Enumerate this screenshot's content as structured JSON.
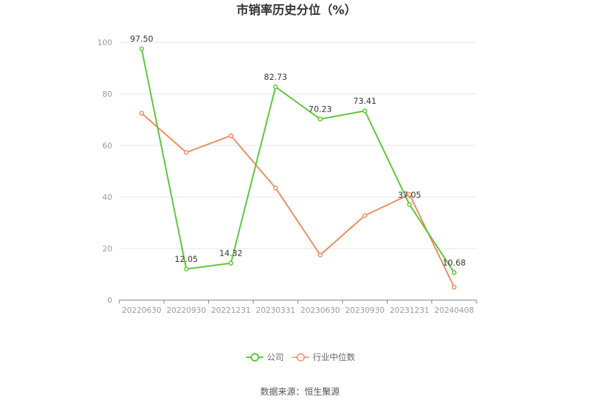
{
  "chart_data": {
    "type": "line",
    "title": "市销率历史分位（%）",
    "categories": [
      "20220630",
      "20220930",
      "20221231",
      "20230331",
      "20230630",
      "20230930",
      "20231231",
      "20240408"
    ],
    "series": [
      {
        "name": "公司",
        "color": "#5ac634",
        "values": [
          97.5,
          12.05,
          14.32,
          82.73,
          70.23,
          73.41,
          37.05,
          10.68
        ],
        "labels": [
          "97.50",
          "12.05",
          "14.32",
          "82.73",
          "70.23",
          "73.41",
          "37.05",
          "10.68"
        ],
        "show_labels": true
      },
      {
        "name": "行业中位数",
        "color": "#f08a5d",
        "values": [
          72.5,
          57.3,
          63.8,
          43.5,
          17.5,
          32.8,
          41.0,
          5.0
        ],
        "show_labels": false
      }
    ],
    "ylim": [
      0,
      100
    ],
    "yticks": [
      "0",
      "20",
      "40",
      "60",
      "80",
      "100"
    ],
    "grid": true,
    "legend_position": "bottom-center",
    "source": "数据来源：恒生聚源"
  }
}
